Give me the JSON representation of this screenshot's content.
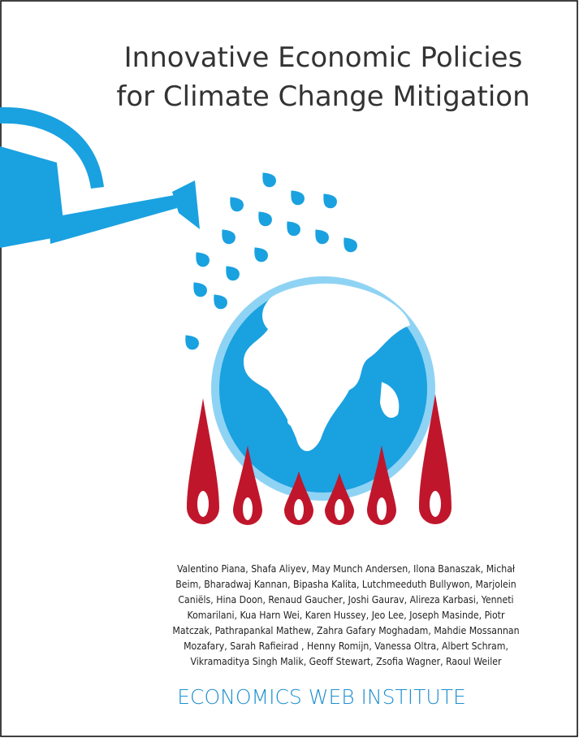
{
  "cover": {
    "title": [
      "Innovative Economic Policies",
      "for Climate Change Mitigation"
    ],
    "authors": [
      "Valentino Piana, Shafa Aliyev, May Munch Andersen, Ilona Banaszak, Michał",
      "Beim, Bharadwaj Kannan, Bipasha Kalita, Lutchmeeduth Bullywon, Marjolein",
      "Caniëls, Hina Doon, Renaud Gaucher, Joshi Gaurav, Alireza Karbasi, Yenneti",
      "Komarilani, Kua Harn Wei, Karen Hussey, Jeo Lee, Joseph Masinde, Piotr",
      "Matczak, Pathrapankal Mathew, Zahra Gafary Moghadam, Mahdie Mossannan",
      "Mozafary, Sarah Rafieirad , Henny Romijn, Vanessa Oltra, Albert Schram,",
      "Vikramaditya Singh Malik, Geoff Stewart, Zsofia Wagner, Raoul Weiler"
    ],
    "publisher": "ECONOMICS WEB INSTITUTE"
  }
}
